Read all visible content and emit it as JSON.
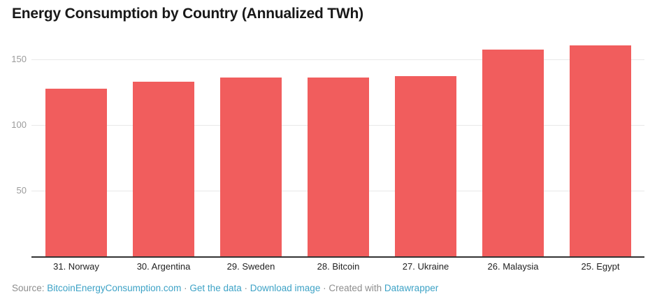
{
  "title": "Energy Consumption by Country (Annualized TWh)",
  "chart_data": {
    "type": "bar",
    "title": "Energy Consumption by Country (Annualized TWh)",
    "categories": [
      "31. Norway",
      "30. Argentina",
      "29. Sweden",
      "28. Bitcoin",
      "27. Ukraine",
      "26. Malaysia",
      "25. Egypt"
    ],
    "values": [
      127.5,
      133,
      136,
      136,
      137.5,
      157.5,
      160.5
    ],
    "xlabel": "",
    "ylabel": "",
    "yticks": [
      50,
      100,
      150
    ],
    "ylim": [
      0,
      166
    ],
    "grid": true,
    "legend": "none",
    "bar_color": "#f15d5d",
    "gridline_color": "#e8e8e8",
    "axis_color": "#333333"
  },
  "footer": {
    "source_label": "Source:",
    "source_link": "BitcoinEnergyConsumption.com",
    "separator": "·",
    "get_data_link": "Get the data",
    "download_image_link": "Download image",
    "created_with": "Created with",
    "datawrapper_link": "Datawrapper",
    "link_color": "#3da2c6"
  }
}
